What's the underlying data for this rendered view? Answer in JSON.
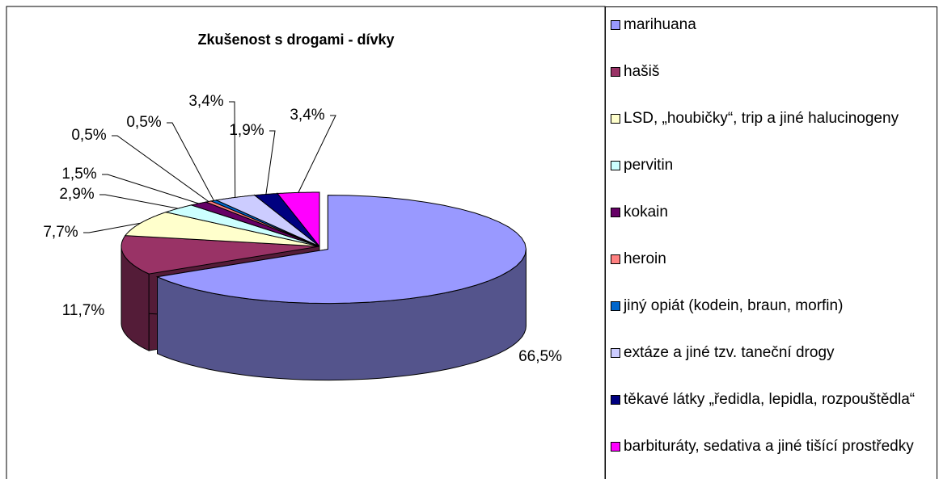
{
  "chart_data": {
    "type": "pie",
    "title": "Zkušenost s drogami - dívky",
    "categories": [
      "marihuana",
      "hašiš",
      "LSD, „houbičky“, trip a jiné halucinogeny",
      "pervitin",
      "kokain",
      "heroin",
      "jiný opiát (kodein, braun, morfin)",
      "extáze a jiné tzv. taneční drogy",
      "těkavé látky „ředidla, lepidla, rozpouštědla“",
      "barbituráty, sedativa a jiné tišící prostředky"
    ],
    "values": [
      66.5,
      11.7,
      7.7,
      2.9,
      1.5,
      0.5,
      0.5,
      3.4,
      1.9,
      3.4
    ],
    "value_labels": [
      "66,5%",
      "11,7%",
      "7,7%",
      "2,9%",
      "1,5%",
      "0,5%",
      "0,5%",
      "3,4%",
      "1,9%",
      "3,4%"
    ],
    "colors": [
      "#9999ff",
      "#993366",
      "#ffffcc",
      "#ccffff",
      "#660066",
      "#ff8080",
      "#0066cc",
      "#ccccff",
      "#000080",
      "#ff00ff"
    ],
    "legend": "right"
  }
}
